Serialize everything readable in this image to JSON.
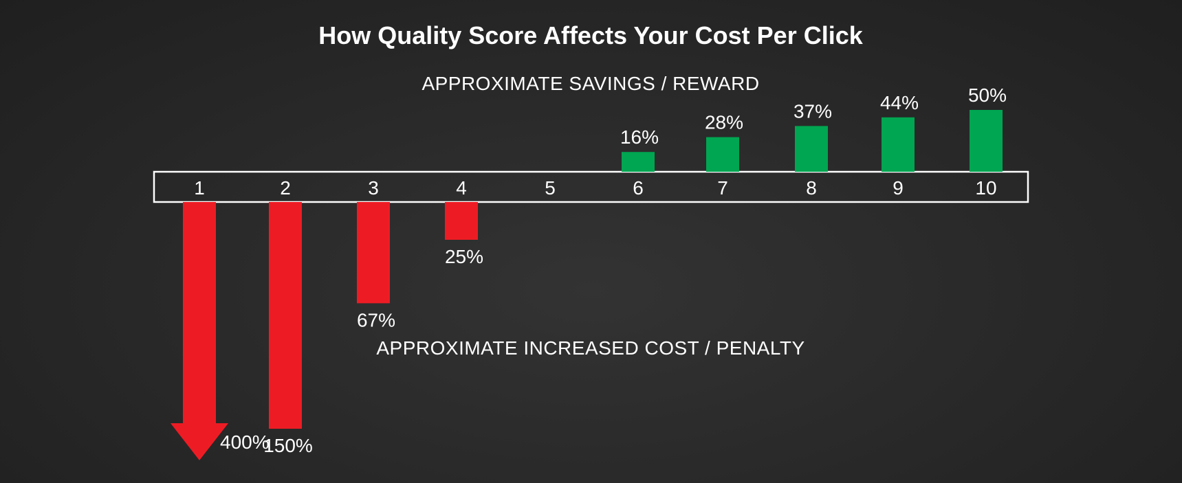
{
  "chart_data": {
    "type": "bar",
    "title": "How Quality Score Affects Your Cost Per Click",
    "top_caption": "APPROXIMATE SAVINGS / REWARD",
    "bottom_caption": "APPROXIMATE INCREASED COST / PENALTY",
    "categories": [
      "1",
      "2",
      "3",
      "4",
      "5",
      "6",
      "7",
      "8",
      "9",
      "10"
    ],
    "series": [
      {
        "kind": "penalty",
        "color": "#ed1c24",
        "values": [
          400,
          150,
          67,
          25,
          null,
          null,
          null,
          null,
          null,
          null
        ],
        "labels": [
          "400%",
          "150%",
          "67%",
          "25%",
          "",
          "",
          "",
          "",
          "",
          ""
        ]
      },
      {
        "kind": "reward",
        "color": "#00a651",
        "values": [
          null,
          null,
          null,
          null,
          null,
          16,
          28,
          37,
          44,
          50
        ],
        "labels": [
          "",
          "",
          "",
          "",
          "",
          "16%",
          "28%",
          "37%",
          "44%",
          "50%"
        ]
      }
    ],
    "grid": false,
    "legend": "none"
  }
}
